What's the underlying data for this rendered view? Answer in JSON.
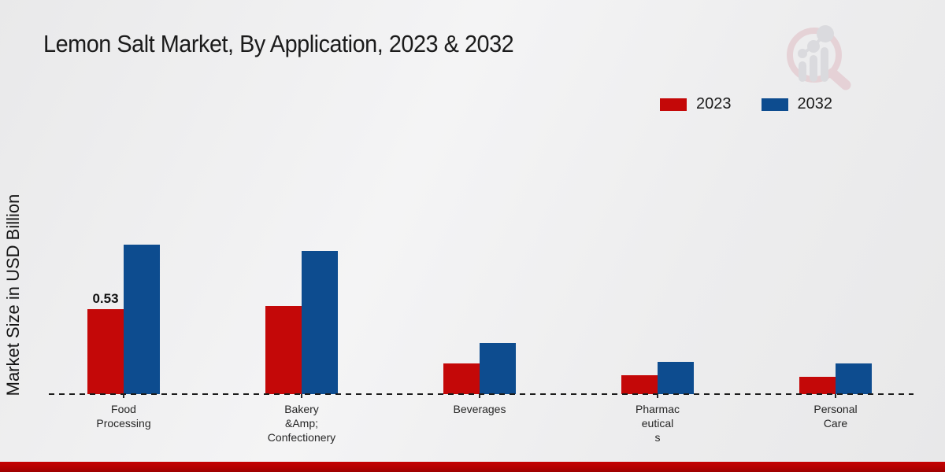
{
  "page": {
    "title": "Lemon Salt Market, By Application, 2023 & 2032"
  },
  "colors": {
    "series_2023": "#c40808",
    "series_2032": "#0d4c8f",
    "footer_accent": "#b50000",
    "background": "#ededee"
  },
  "icons": {
    "watermark": "magnifier-bar-chart-logo-icon"
  },
  "chart_data": {
    "type": "bar",
    "title": "Lemon Salt Market, By Application, 2023 & 2032",
    "xlabel": "",
    "ylabel": "Market Size in USD Billion",
    "categories": [
      "Food\nProcessing",
      "Bakery\n&Amp;\nConfectionery",
      "Beverages",
      "Pharmac\neutical\ns",
      "Personal\nCare"
    ],
    "series": [
      {
        "name": "2023",
        "color": "#c40808",
        "values": [
          0.53,
          0.55,
          0.19,
          0.12,
          0.11
        ]
      },
      {
        "name": "2032",
        "color": "#0d4c8f",
        "values": [
          0.93,
          0.89,
          0.32,
          0.2,
          0.19
        ]
      }
    ],
    "data_labels": [
      {
        "series": 0,
        "index": 0,
        "text": "0.53"
      }
    ],
    "ylim": [
      0,
      1.0
    ],
    "grid": false,
    "legend_position": "top-right",
    "baseline_style": "dashed"
  }
}
